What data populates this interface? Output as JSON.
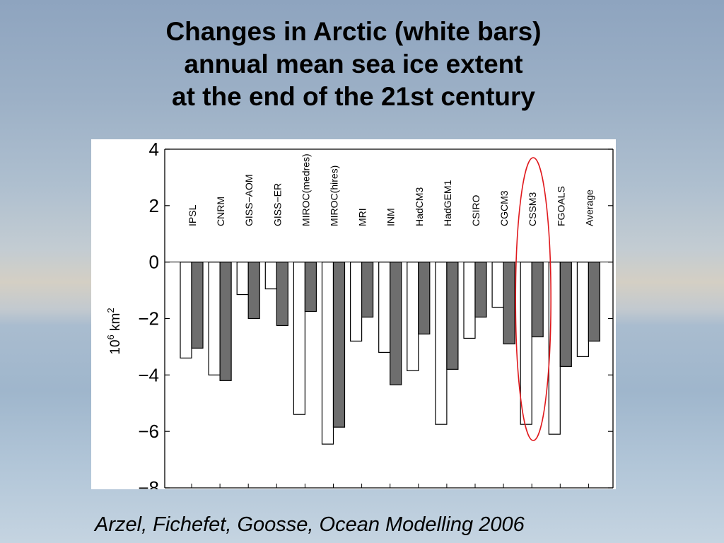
{
  "slide": {
    "title_lines": [
      "Changes in Arctic (white bars)",
      "annual mean sea ice extent",
      "at the end of the 21st century"
    ],
    "citation": "Arzel, Fichefet, Goosse, Ocean Modelling 2006"
  },
  "chart_data": {
    "type": "bar",
    "title": "",
    "xlabel": "",
    "ylabel_base": "10",
    "ylabel_exp": "6",
    "ylabel_unit": " km",
    "ylabel_unit_exp": "2",
    "ylim": [
      -8,
      4
    ],
    "yticks": [
      4,
      2,
      0,
      -2,
      -4,
      -6,
      -8
    ],
    "ytick_labels": [
      "4",
      "2",
      "0",
      "−2",
      "−4",
      "−6",
      "−8"
    ],
    "grid": false,
    "categories": [
      "IPSL",
      "CNRM",
      "GISS−AOM",
      "GISS−ER",
      "MIROC(medres)",
      "MIROC(hires)",
      "MRI",
      "INM",
      "HadCM3",
      "HadGEM1",
      "CSIRO",
      "CGCM3",
      "CSSM3",
      "FGOALS",
      "Average"
    ],
    "series": [
      {
        "color": "#ffffff",
        "values": [
          -3.4,
          -4.0,
          -1.15,
          -0.95,
          -5.4,
          -6.45,
          -2.8,
          -3.2,
          -3.85,
          -5.75,
          -2.7,
          -1.6,
          -5.75,
          -6.1,
          -3.35
        ]
      },
      {
        "color": "#6e6e6e",
        "values": [
          -3.05,
          -4.2,
          -2.0,
          -2.25,
          -1.75,
          -5.85,
          -1.95,
          -4.35,
          -2.55,
          -3.8,
          -1.95,
          -2.9,
          -2.65,
          -3.7,
          -2.8
        ]
      }
    ],
    "annotations": [
      {
        "type": "ellipse",
        "target": "CSSM3",
        "color": "#e0191d"
      }
    ]
  }
}
